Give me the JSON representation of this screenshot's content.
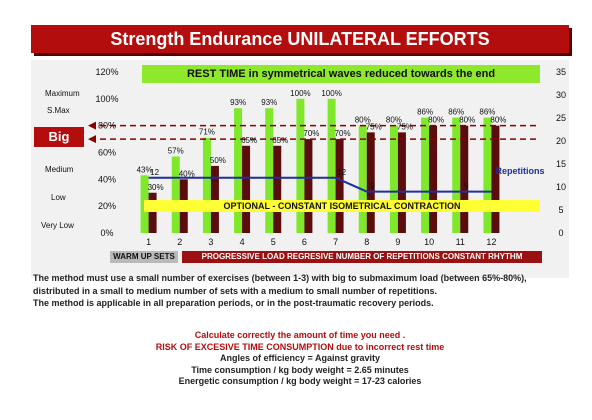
{
  "title": "Strength Endurance UNILATERAL EFFORTS",
  "scale_labels": [
    "Maximum",
    "S.Max",
    "Big",
    "Medium",
    "Low",
    "Very Low"
  ],
  "rest_time_label": "REST TIME in symmetrical waves reduced towards the end",
  "optional_label": "OPTIONAL - CONSTANT ISOMETRICAL CONTRACTION",
  "warm_up_label": "WARM UP SETS",
  "progressive_label": "PROGRESSIVE LOAD REGRESIVE NUMBER OF REPETITIONS  CONSTANT RHYTHM",
  "repetitions_label": "Repetitions",
  "description": [
    "The method must use a small number of exercises (between 1-3) with big to submaximum load (between 65%-80%),",
    "distributed in a small to medium  number of sets with a medium to small number of repetitions.",
    "The method is applicable in all preparation periods, or in the post-traumatic recovery periods."
  ],
  "notes": {
    "calculate": "Calculate correctly  the amount of time you need .",
    "risk": "RISK OF EXCESIVE TIME CONSUMPTION due to incorrect rest time",
    "angles": "Angles of efficiency = Against gravity",
    "time": "Time consumption /  kg body weight = 2.65 minutes",
    "energy": "Energetic consumption /  kg body weight =  17-23  calories"
  },
  "colors": {
    "title_red": "#b30d0d",
    "bar_green": "#7fe82a",
    "bar_dark": "#5b0c0c",
    "line_blue": "#1f2f9f",
    "dashed_red": "#8b0000",
    "highlight_yellow": "#ffff33"
  },
  "chart_data": {
    "type": "bar",
    "categories": [
      "1",
      "2",
      "3",
      "4",
      "5",
      "6",
      "7",
      "8",
      "9",
      "10",
      "11",
      "12"
    ],
    "y_left": {
      "min": 0,
      "max": 120,
      "ticks": [
        "0%",
        "20%",
        "40%",
        "60%",
        "80%",
        "100%",
        "120%"
      ]
    },
    "y_right": {
      "min": 0,
      "max": 35,
      "ticks": [
        "0",
        "5",
        "10",
        "15",
        "20",
        "25",
        "30",
        "35"
      ]
    },
    "series": [
      {
        "values": [
          43,
          57,
          71,
          93,
          93,
          100,
          100,
          80,
          80,
          86,
          86,
          86
        ],
        "labels": [
          "43%",
          "57%",
          "71%",
          "93%",
          "93%",
          "100%",
          "100%",
          "80%",
          "80%",
          "86%",
          "86%",
          "86%"
        ]
      },
      {
        "values": [
          30,
          40,
          50,
          65,
          65,
          70,
          70,
          75,
          75,
          80,
          80,
          80
        ],
        "labels": [
          "30%",
          "40%",
          "50%",
          "65%",
          "65%",
          "70%",
          "70%",
          "75%",
          "75%",
          "80%",
          "80%",
          "80%"
        ]
      },
      {
        "name": "Repetitions",
        "values": [
          12,
          12,
          12,
          12,
          12,
          12,
          12,
          9,
          9,
          9,
          9,
          9
        ],
        "labels": [
          "12",
          "",
          "",
          "",
          "",
          "",
          "12",
          "9",
          "",
          "",
          "9",
          ""
        ]
      }
    ],
    "reference_lines": [
      80,
      70
    ],
    "grid": false
  }
}
